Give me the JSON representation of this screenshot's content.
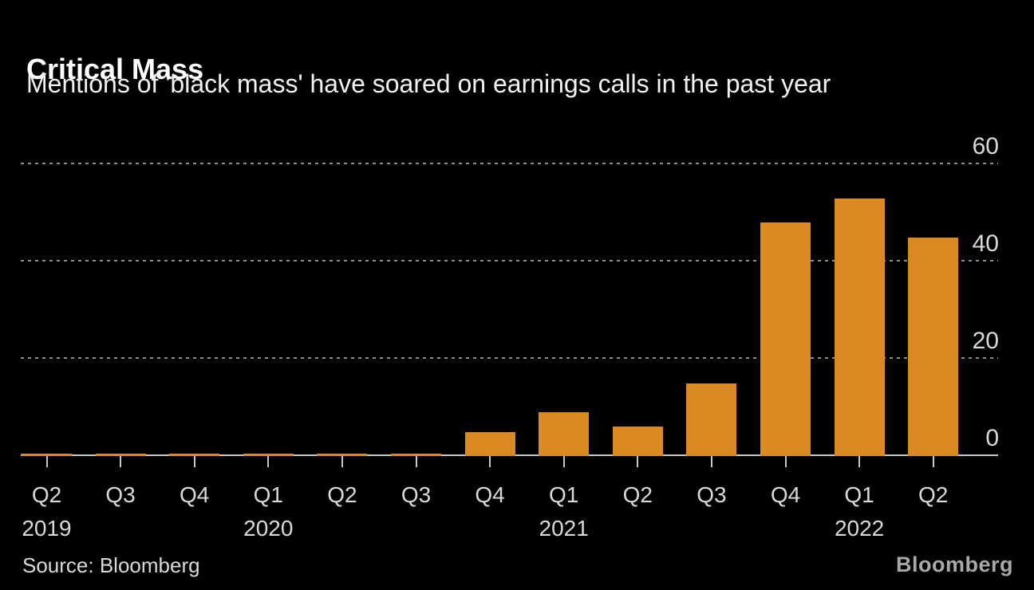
{
  "header": {
    "title": "Critical Mass",
    "subtitle": "Mentions of 'black mass' have soared on earnings calls in the past year"
  },
  "chart_data": {
    "type": "bar",
    "title": "Critical Mass",
    "subtitle": "Mentions of 'black mass' have soared on earnings calls in the past year",
    "categories": [
      "Q2 2019",
      "Q3 2019",
      "Q4 2019",
      "Q1 2020",
      "Q2 2020",
      "Q3 2020",
      "Q4 2020",
      "Q1 2021",
      "Q2 2021",
      "Q3 2021",
      "Q4 2021",
      "Q1 2022",
      "Q2 2022"
    ],
    "x_tick_labels": [
      "Q2",
      "Q3",
      "Q4",
      "Q1",
      "Q2",
      "Q3",
      "Q4",
      "Q1",
      "Q2",
      "Q3",
      "Q4",
      "Q1",
      "Q2"
    ],
    "year_labels": [
      {
        "text": "2019",
        "index": 0
      },
      {
        "text": "2020",
        "index": 3
      },
      {
        "text": "2021",
        "index": 7
      },
      {
        "text": "2022",
        "index": 11
      }
    ],
    "values": [
      0.5,
      0.5,
      0.5,
      0.5,
      0.5,
      0.5,
      5,
      9,
      6,
      15,
      48,
      53,
      45
    ],
    "y_ticks": [
      0,
      20,
      40,
      60
    ],
    "ylim": [
      0,
      60
    ],
    "xlabel": "",
    "ylabel": "",
    "legend": "none",
    "grid": "horizontal-dotted",
    "y_axis_side": "right",
    "bar_color": "#db8a23"
  },
  "footer": {
    "source": "Source:  Bloomberg",
    "logo": "Bloomberg"
  },
  "colors": {
    "background": "#000000",
    "bar": "#db8a23",
    "title_text": "#ffffff",
    "axis_text": "#d9d9d9",
    "gridline": "#8f8f8f",
    "axis_line": "#c8c8c8",
    "logo_text": "#a9a9a9"
  }
}
